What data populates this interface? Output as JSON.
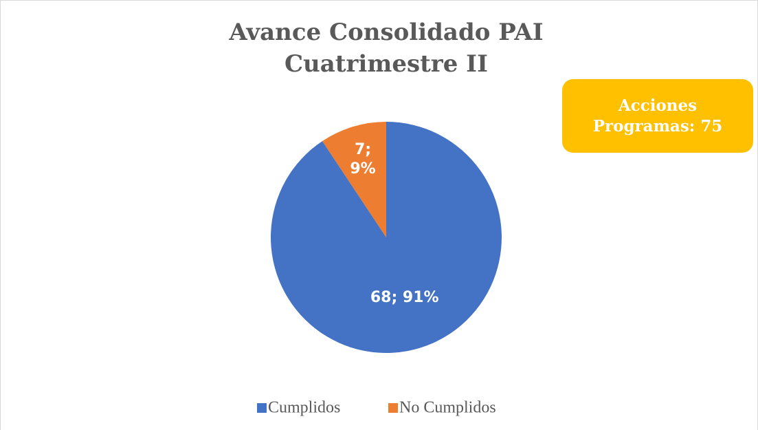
{
  "chart_data": {
    "type": "pie",
    "title": "Avance Consolidado PAI",
    "subtitle": "Cuatrimestre II",
    "annotation": "Acciones Programas: 75",
    "categories": [
      "Cumplidos",
      "No Cumplidos"
    ],
    "values": [
      68,
      7
    ],
    "value_labels": [
      "68; 91%",
      "7; 9%"
    ],
    "colors": [
      "#4472c4",
      "#ed7d31"
    ],
    "legend": "bottom"
  }
}
